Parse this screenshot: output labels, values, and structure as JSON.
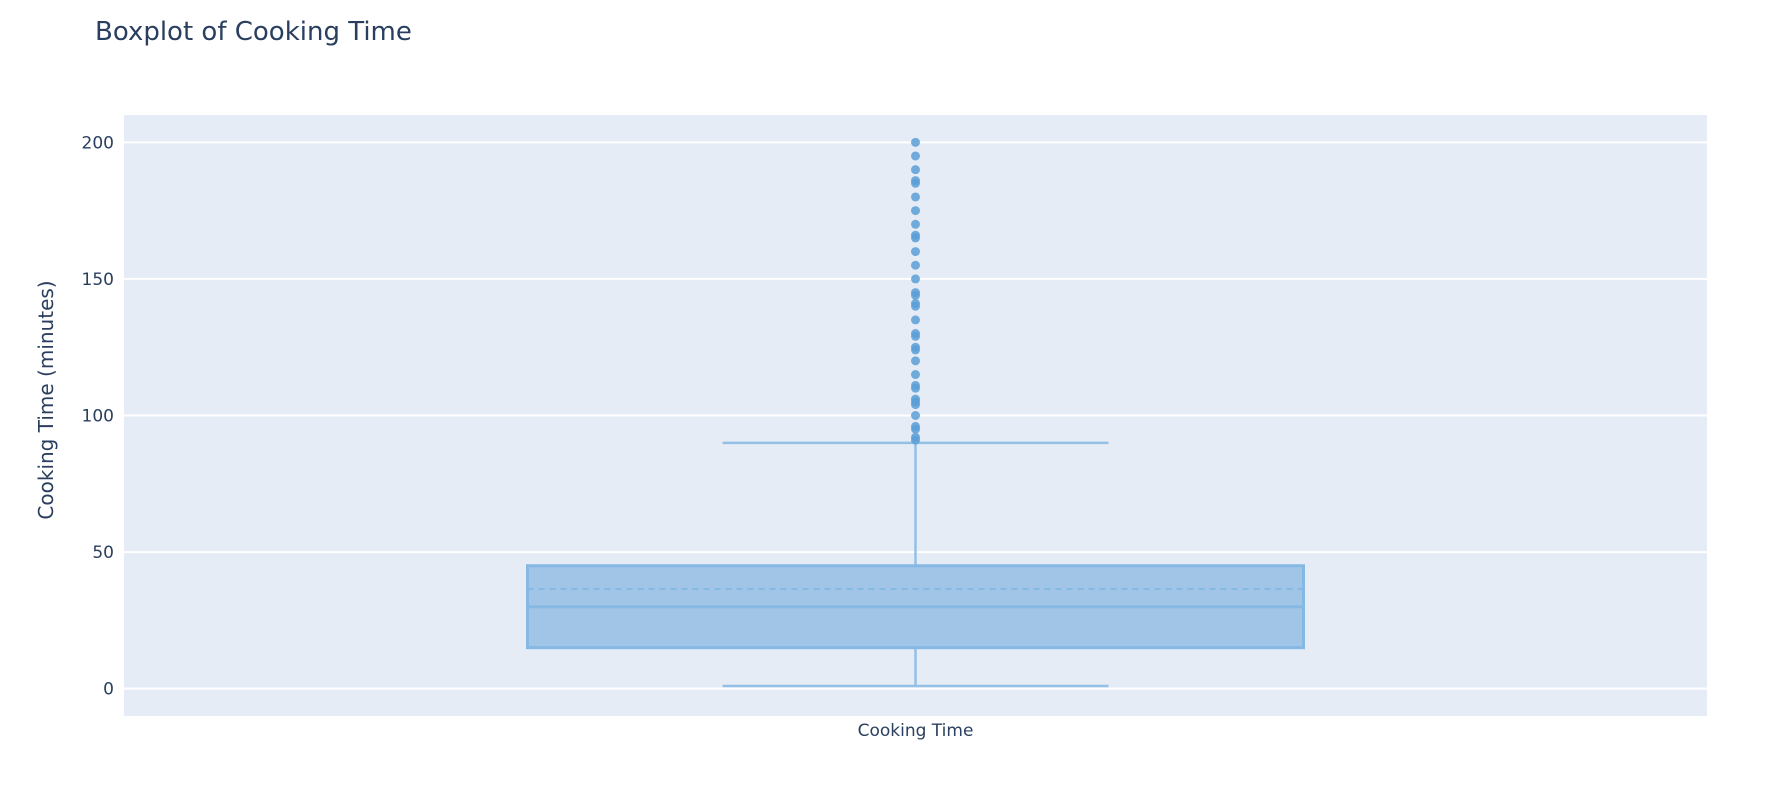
{
  "chart_data": {
    "type": "box",
    "title": "Boxplot of Cooking Time",
    "xlabel": "",
    "ylabel": "Cooking Time (minutes)",
    "categories": [
      "Cooking Time"
    ],
    "ylim": [
      -10,
      210
    ],
    "yticks": [
      0,
      50,
      100,
      150,
      200
    ],
    "grid": true,
    "legend": "none",
    "box": {
      "category": "Cooking Time",
      "lower_fence": 1,
      "q1": 15,
      "median": 30,
      "mean": 36.5,
      "q3": 45,
      "upper_fence": 90,
      "outliers": [
        91,
        92,
        95,
        96,
        100,
        104,
        105,
        106,
        110,
        111,
        115,
        120,
        124,
        125,
        129,
        130,
        135,
        140,
        141,
        144,
        145,
        150,
        155,
        160,
        165,
        166,
        170,
        175,
        180,
        185,
        186,
        190,
        195,
        200
      ]
    },
    "colors": {
      "plot_background": "#e5ecf6",
      "grid": "#ffffff",
      "box_fill": "#a0c5e6",
      "box_line": "#85b8e3",
      "whisker_line": "#94c0e6",
      "outlier": "#5a9fd6",
      "text": "#2a3f5f"
    }
  }
}
